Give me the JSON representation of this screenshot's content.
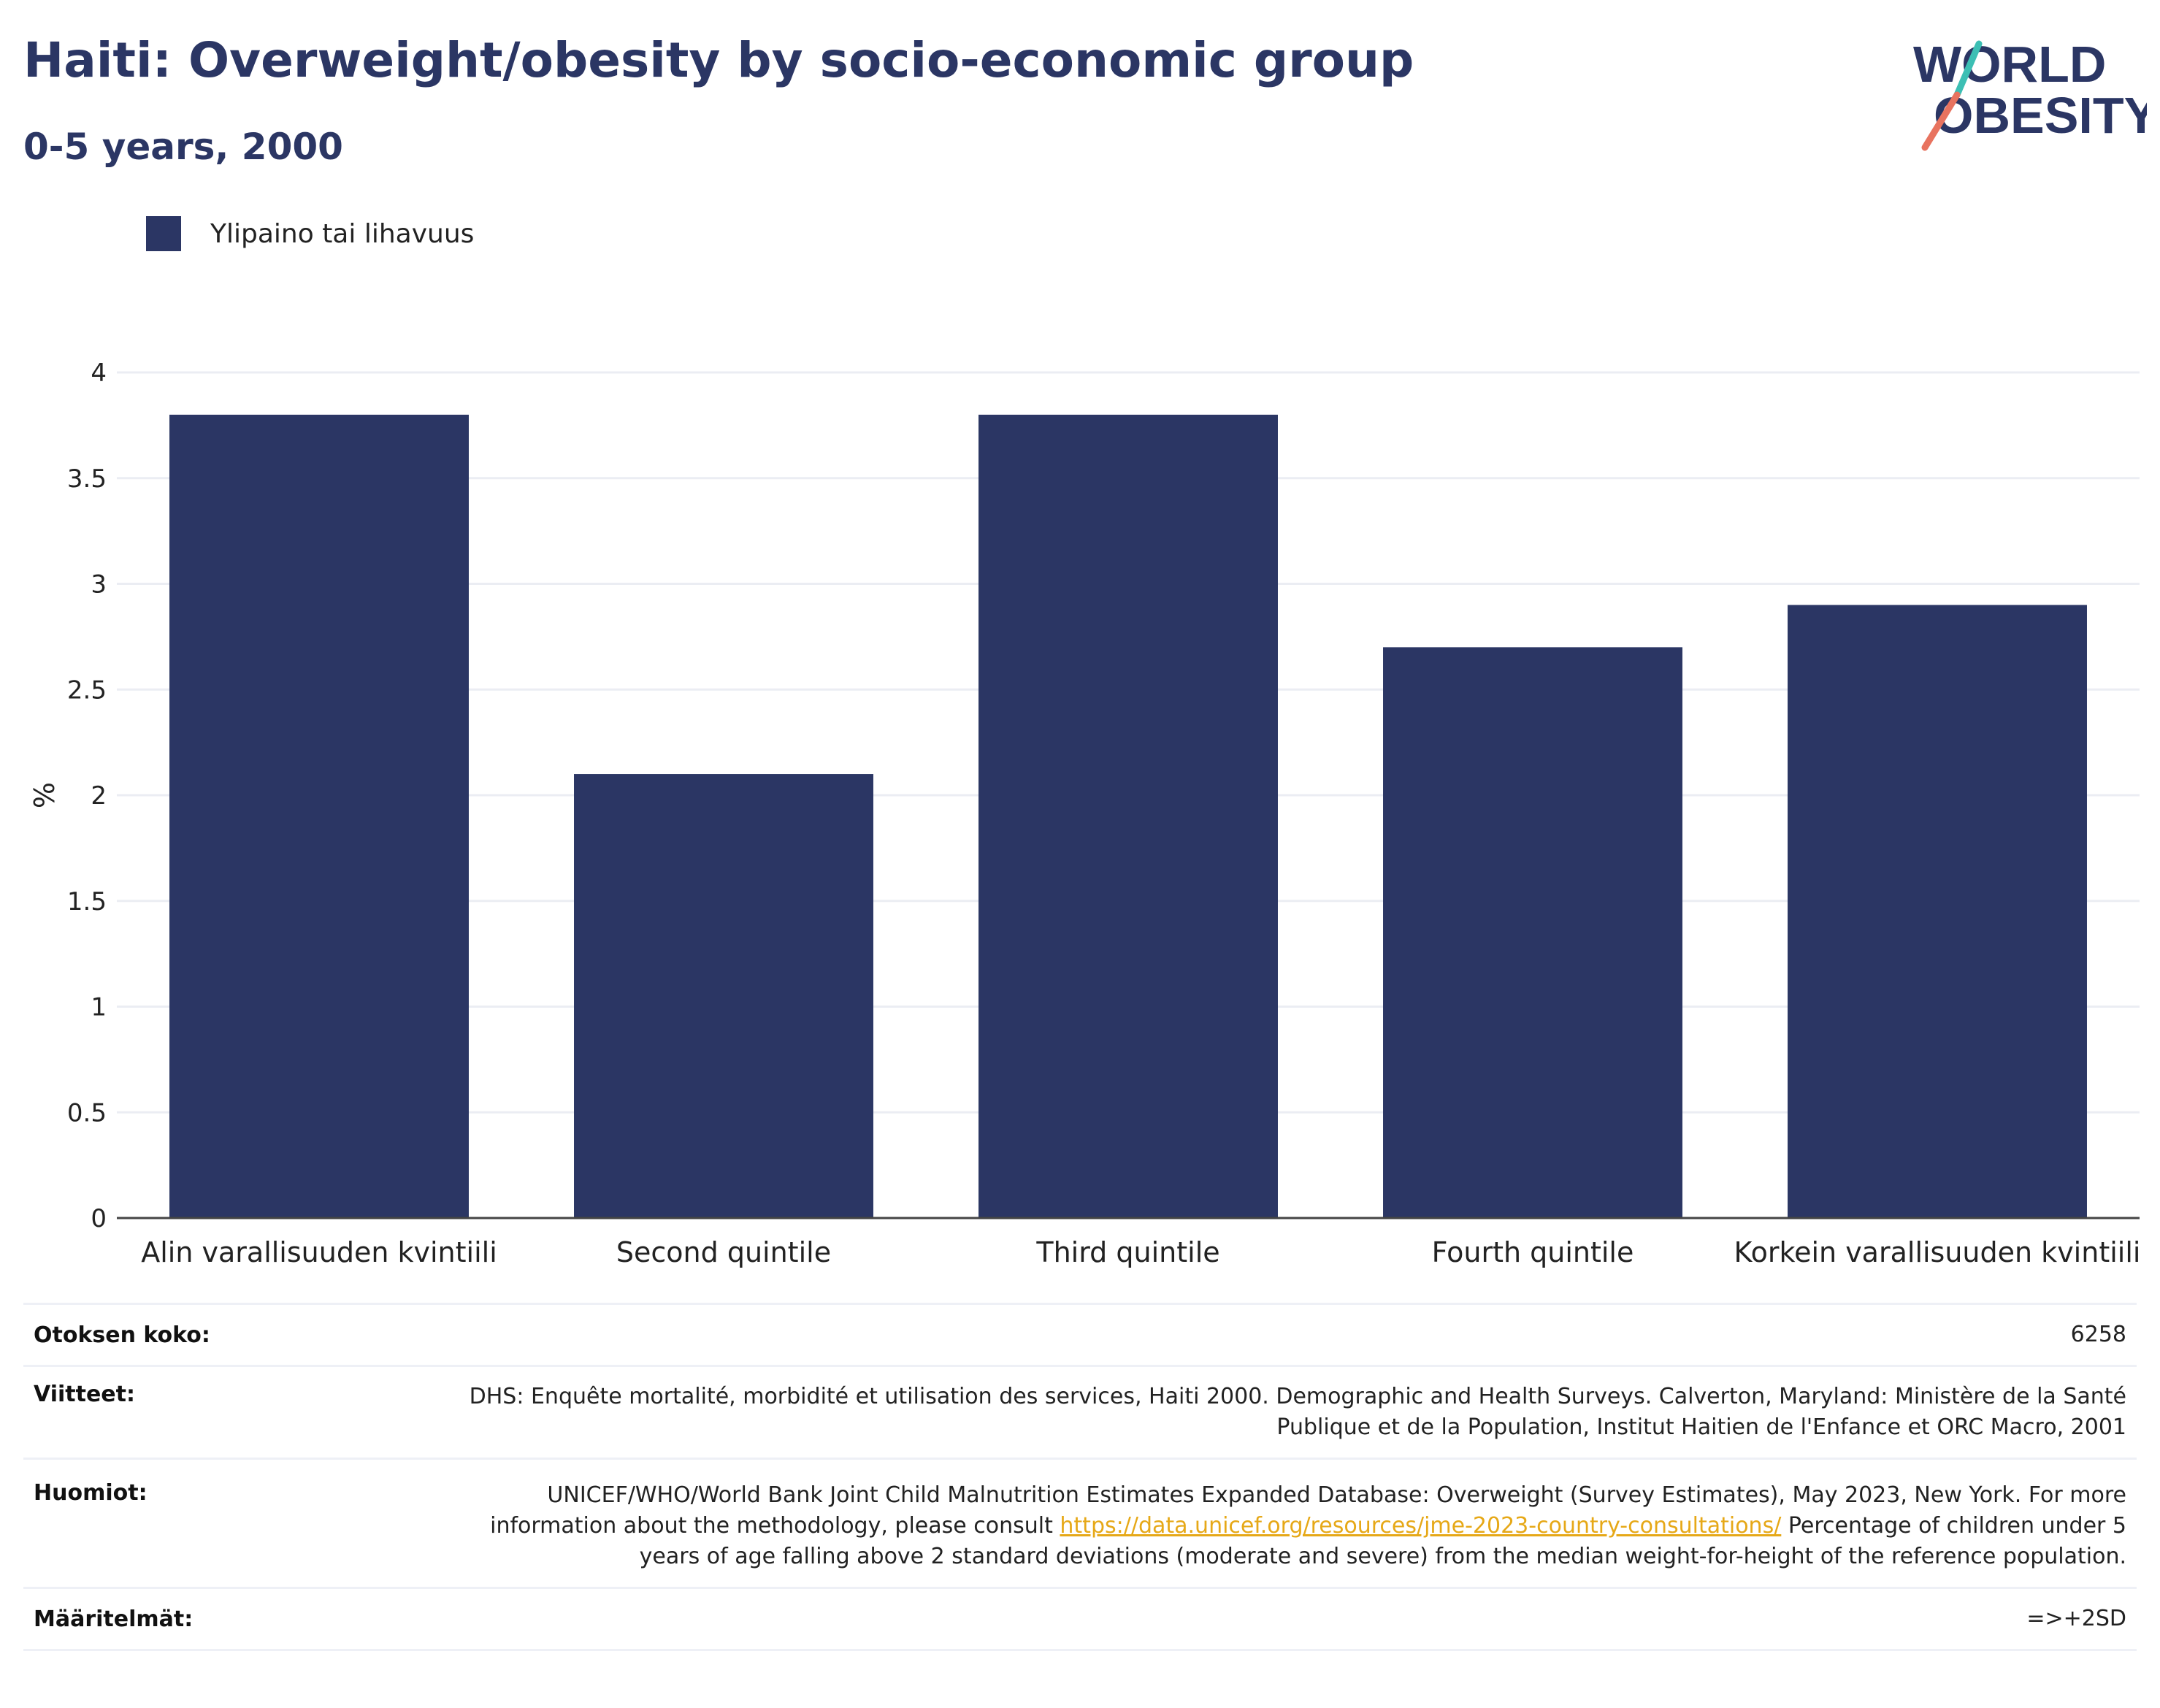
{
  "header": {
    "title": "Haiti: Overweight/obesity by socio-economic group",
    "subtitle": "0-5 years, 2000"
  },
  "logo": {
    "line1": "WORLD",
    "line2": "OBESITY",
    "accent_teal": "#3cbfb4",
    "accent_coral": "#e8735f",
    "text_color": "#2b3664"
  },
  "legend": {
    "label": "Ylipaino tai lihavuus",
    "color": "#2b3664"
  },
  "chart_data": {
    "type": "bar",
    "categories": [
      "Alin varallisuuden kvintiili",
      "Second quintile",
      "Third quintile",
      "Fourth quintile",
      "Korkein varallisuuden kvintiili"
    ],
    "series": [
      {
        "name": "Ylipaino tai lihavuus",
        "values": [
          3.8,
          2.1,
          3.8,
          2.7,
          2.9
        ],
        "color": "#2b3664"
      }
    ],
    "ylabel": "%",
    "xlabel": "",
    "ylim": [
      0,
      4
    ],
    "yticks": [
      "0",
      "0.5",
      "1",
      "1.5",
      "2",
      "2.5",
      "3",
      "3.5",
      "4"
    ],
    "grid": true,
    "legend_position": "top-left"
  },
  "meta": {
    "sample_key": "Otoksen koko:",
    "sample_val": "6258",
    "refs_key": "Viitteet:",
    "refs_val": "DHS: Enquête mortalité, morbidité et utilisation des services, Haiti 2000. Demographic and Health Surveys. Calverton, Maryland: Ministère de la Santé Publique et de la Population, Institut Haitien de l'Enfance et ORC Macro, 2001",
    "notes_key": "Huomiot:",
    "notes_val_pre": "UNICEF/WHO/World Bank Joint Child Malnutrition Estimates Expanded Database: Overweight (Survey Estimates), May 2023, New York. For more information about the methodology, please consult ",
    "notes_link": "https://data.unicef.org/resources/jme-2023-country-consultations/",
    "notes_val_post": " Percentage of children under 5 years of age falling above 2 standard deviations (moderate and severe) from the median weight-for-height of the reference population.",
    "defs_key": "Määritelmät:",
    "defs_val": "=>+2SD"
  }
}
